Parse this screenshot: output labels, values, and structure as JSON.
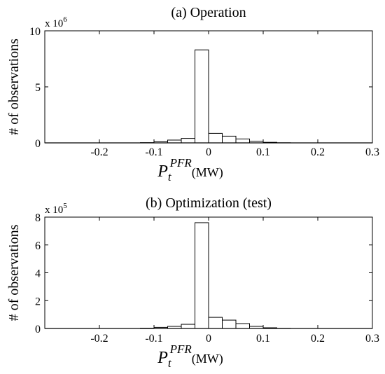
{
  "chart_data": [
    {
      "type": "bar",
      "title": "(a) Operation",
      "ylabel": "# of observations",
      "xlabel_symbol": "P",
      "xlabel_sub": "t",
      "xlabel_sup": "PFR",
      "xlabel_unit": "(MW)",
      "scale_label": "x 10",
      "scale_exp": "6",
      "xlim": [
        -0.3,
        0.3
      ],
      "ylim": [
        0,
        10
      ],
      "xticks": [
        "-0.2",
        "-0.1",
        "0",
        "0.1",
        "0.2",
        "0.3"
      ],
      "yticks": [
        "0",
        "5",
        "10"
      ],
      "bin_edges": [
        -0.3,
        -0.275,
        -0.25,
        -0.225,
        -0.2,
        -0.175,
        -0.15,
        -0.125,
        -0.1,
        -0.075,
        -0.05,
        -0.025,
        0,
        0.025,
        0.05,
        0.075,
        0.1,
        0.125,
        0.15,
        0.175,
        0.2,
        0.225,
        0.25,
        0.275,
        0.3
      ],
      "values": [
        0,
        0,
        0,
        0,
        0,
        0,
        0,
        0.02,
        0.1,
        0.25,
        0.4,
        8.3,
        0.85,
        0.6,
        0.35,
        0.15,
        0.05,
        0.01,
        0,
        0,
        0,
        0,
        0,
        0
      ]
    },
    {
      "type": "bar",
      "title": "(b) Optimization (test)",
      "ylabel": "# of observations",
      "xlabel_symbol": "P",
      "xlabel_sub": "t",
      "xlabel_sup": "PFR",
      "xlabel_unit": "(MW)",
      "scale_label": "x 10",
      "scale_exp": "5",
      "xlim": [
        -0.3,
        0.3
      ],
      "ylim": [
        0,
        8
      ],
      "xticks": [
        "-0.2",
        "-0.1",
        "0",
        "0.1",
        "0.2",
        "0.3"
      ],
      "yticks": [
        "0",
        "2",
        "4",
        "6",
        "8"
      ],
      "bin_edges": [
        -0.3,
        -0.275,
        -0.25,
        -0.225,
        -0.2,
        -0.175,
        -0.15,
        -0.125,
        -0.1,
        -0.075,
        -0.05,
        -0.025,
        0,
        0.025,
        0.05,
        0.075,
        0.1,
        0.125,
        0.15,
        0.175,
        0.2,
        0.225,
        0.25,
        0.275,
        0.3
      ],
      "values": [
        0,
        0,
        0,
        0,
        0,
        0,
        0,
        0.02,
        0.08,
        0.15,
        0.3,
        7.6,
        0.8,
        0.6,
        0.35,
        0.15,
        0.05,
        0.01,
        0,
        0,
        0,
        0,
        0,
        0
      ]
    }
  ]
}
